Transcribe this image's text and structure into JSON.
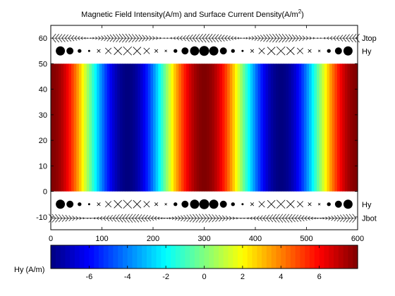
{
  "chart_data": {
    "type": "heatmap",
    "title": "Magnetic Field Intensity(A/m) and Surface Current Density(A/m",
    "title_sup": "2",
    "title_close": ")",
    "x": {
      "lim": [
        0,
        600
      ],
      "ticks": [
        "0",
        "100",
        "200",
        "300",
        "400",
        "500",
        "600"
      ]
    },
    "y": {
      "lim": [
        -15,
        65
      ],
      "ticks": [
        "-10",
        "0",
        "10",
        "20",
        "30",
        "40",
        "50",
        "60"
      ]
    },
    "field": {
      "y_range": [
        0,
        50
      ],
      "period": 300,
      "amplitude": 8,
      "description": "Hy = 8*cos(2*pi*x/300), constant along y"
    },
    "rows": [
      {
        "label": "Jtop",
        "y": 60,
        "kind": "current"
      },
      {
        "label": "Hy",
        "y": 55,
        "kind": "field"
      },
      {
        "label": "Hy",
        "y": -5,
        "kind": "field"
      },
      {
        "label": "Jbot",
        "y": -10.5,
        "kind": "current"
      }
    ],
    "colorbar": {
      "label": "Hy (A/m)",
      "lim": [
        -8,
        8
      ],
      "ticks": [
        "-6",
        "-4",
        "-2",
        "0",
        "2",
        "4",
        "6"
      ],
      "colormap": "jet"
    }
  }
}
